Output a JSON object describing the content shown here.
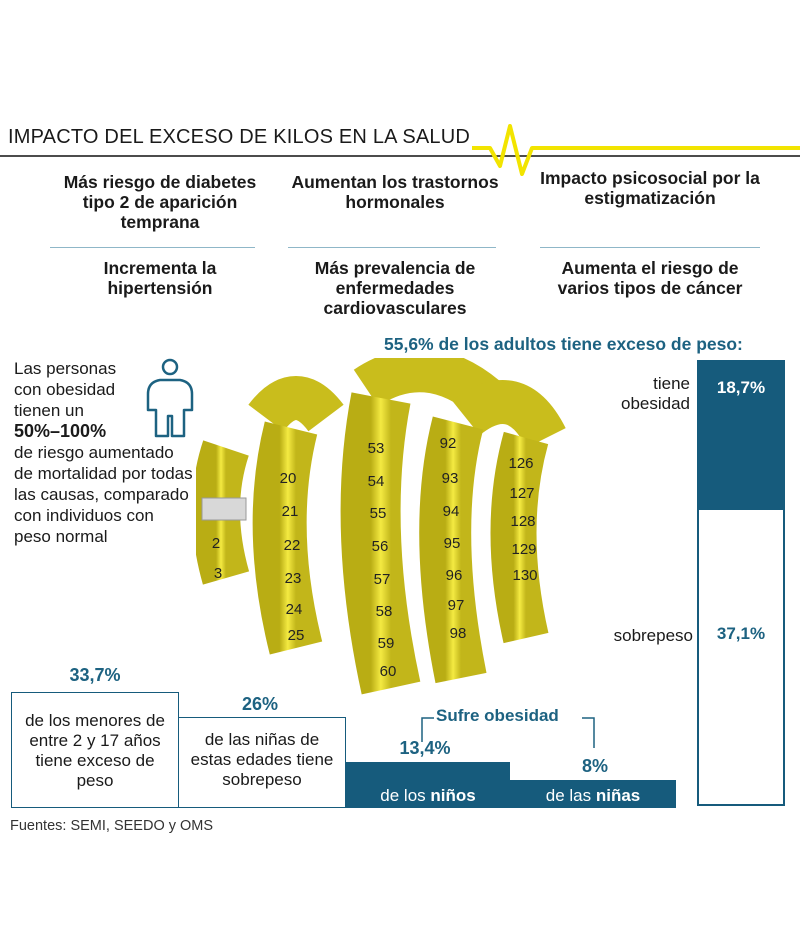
{
  "title": "IMPACTO DEL EXCESO DE KILOS EN LA SALUD",
  "impacts": {
    "row1": [
      "Más riesgo de diabetes tipo 2 de aparición temprana",
      "Aumentan los trastornos hormonales",
      "Impacto psicosocial por la estigmatización"
    ],
    "row2": [
      "Incrementa la hipertensión",
      "Más prevalencia de enfermedades cardiovasculares",
      "Aumenta el riesgo de varios tipos de cáncer"
    ]
  },
  "mortality": {
    "line1": "Las personas con obesidad tienen un",
    "pct": "50%–100%",
    "line2": "de riesgo aumentado de mortalidad por todas las causas, comparado con individuos con peso normal"
  },
  "adults": {
    "title": "55,6% de los adultos tiene exceso de peso:",
    "obesity_label": "tiene obesidad",
    "obesity_value": "18,7%",
    "overweight_label": "sobrepeso",
    "overweight_value": "37,1%"
  },
  "minors": {
    "pct": "33,7%",
    "text": "de los menores de entre 2 y 17 años tiene exceso de peso"
  },
  "girls_overweight": {
    "pct": "26%",
    "text": "de las niñas de estas edades tiene sobrepeso"
  },
  "obesity_children": {
    "title": "Sufre obesidad",
    "boys_value": "13,4%",
    "boys_label_pre": "de los ",
    "boys_label_bold": "niños",
    "girls_value": "8%",
    "girls_label_pre": "de las ",
    "girls_label_bold": "niñas"
  },
  "sources": "Fuentes: SEMI, SEEDO y OMS",
  "chart_data": {
    "type": "bar",
    "title": "IMPACTO DEL EXCESO DE KILOS EN LA SALUD",
    "series": [
      {
        "name": "adultos",
        "values": [
          {
            "label": "tiene obesidad",
            "value": 18.7
          },
          {
            "label": "sobrepeso",
            "value": 37.1
          }
        ]
      },
      {
        "name": "Sufre obesidad",
        "values": [
          {
            "label": "de los niños",
            "value": 13.4
          },
          {
            "label": "de las niñas",
            "value": 8
          }
        ]
      }
    ],
    "adult_total": 55.6,
    "minors_excess": 33.7,
    "girls_overweight": 26
  },
  "colors": {
    "accent": "#165b7c",
    "text_accent": "#1d6281",
    "pulse": "#f2e400",
    "tape": "#e9e03a"
  },
  "icons": [
    "person-icon",
    "tape-measure-image",
    "heartbeat-line"
  ]
}
